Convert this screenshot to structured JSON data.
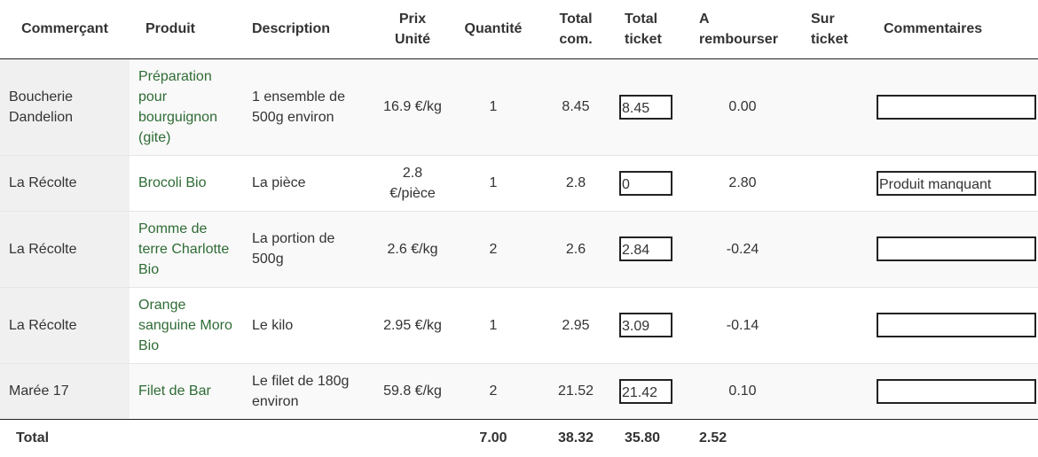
{
  "table": {
    "headers": {
      "merchant": "Commerçant",
      "product": "Produit",
      "description": "Description",
      "unit_price_line1": "Prix",
      "unit_price_line2": "Unité",
      "quantity": "Quantité",
      "total_order_line1": "Total",
      "total_order_line2": "com.",
      "total_ticket_line1": "Total",
      "total_ticket_line2": "ticket",
      "refund_line1": "A",
      "refund_line2": "rembourser",
      "on_ticket_line1": "Sur",
      "on_ticket_line2": "ticket",
      "comments": "Commentaires"
    },
    "rows": [
      {
        "merchant": "Boucherie Dandelion",
        "product": "Préparation pour bourguignon (gite)",
        "description": "1 ensemble de 500g environ",
        "unit_price": "16.9 €/kg",
        "quantity": "1",
        "total_order": "8.45",
        "total_ticket": "8.45",
        "refund": "0.00",
        "on_ticket": "",
        "comment": ""
      },
      {
        "merchant": "La Récolte",
        "product": "Brocoli Bio",
        "description": "La pièce",
        "unit_price": "2.8 €/pièce",
        "quantity": "1",
        "total_order": "2.8",
        "total_ticket": "0",
        "refund": "2.80",
        "on_ticket": "",
        "comment": "Produit manquant"
      },
      {
        "merchant": "La Récolte",
        "product": "Pomme de terre Charlotte Bio",
        "description": "La portion de 500g",
        "unit_price": "2.6 €/kg",
        "quantity": "2",
        "total_order": "2.6",
        "total_ticket": "2.84",
        "refund": "-0.24",
        "on_ticket": "",
        "comment": ""
      },
      {
        "merchant": "La Récolte",
        "product": "Orange sanguine Moro Bio",
        "description": "Le kilo",
        "unit_price": "2.95 €/kg",
        "quantity": "1",
        "total_order": "2.95",
        "total_ticket": "3.09",
        "refund": "-0.14",
        "on_ticket": "",
        "comment": ""
      },
      {
        "merchant": "Marée 17",
        "product": "Filet de Bar",
        "description": "Le filet de 180g environ",
        "unit_price": "59.8 €/kg",
        "quantity": "2",
        "total_order": "21.52",
        "total_ticket": "21.42",
        "refund": "0.10",
        "on_ticket": "",
        "comment": ""
      }
    ],
    "footer": {
      "label": "Total",
      "quantity": "7.00",
      "total_order": "38.32",
      "total_ticket": "35.80",
      "refund": "2.52"
    }
  },
  "colors": {
    "product_link": "#2e6b34",
    "merchant_bg": "#f0f0f0",
    "row_stripe": "#f9f9f9",
    "border": "#222222"
  }
}
